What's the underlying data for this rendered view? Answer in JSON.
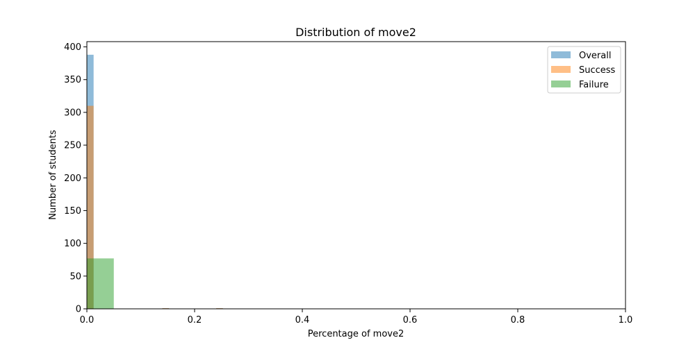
{
  "chart_data": {
    "type": "bar",
    "title": "Distribution of move2",
    "xlabel": "Percentage of move2",
    "ylabel": "Number of students",
    "xlim": [
      0,
      1
    ],
    "ylim": [
      0,
      408
    ],
    "xticks": [
      0.0,
      0.2,
      0.4,
      0.6,
      0.8,
      1.0
    ],
    "xtick_labels": [
      "0.0",
      "0.2",
      "0.4",
      "0.6",
      "0.8",
      "1.0"
    ],
    "yticks": [
      0,
      50,
      100,
      150,
      200,
      250,
      300,
      350,
      400
    ],
    "ytick_labels": [
      "0",
      "50",
      "100",
      "150",
      "200",
      "250",
      "300",
      "350",
      "400"
    ],
    "grid": false,
    "legend_position": "top-right",
    "series": [
      {
        "name": "Overall",
        "color": "#1f77b4",
        "opacity": 0.5,
        "bins": [
          {
            "x0": 0.0,
            "x1": 0.0125,
            "count": 388
          },
          {
            "x0": 0.14,
            "x1": 0.1525,
            "count": 1
          },
          {
            "x0": 0.24,
            "x1": 0.2525,
            "count": 1
          }
        ]
      },
      {
        "name": "Success",
        "color": "#ff7f0e",
        "opacity": 0.5,
        "bins": [
          {
            "x0": 0.0,
            "x1": 0.0125,
            "count": 310
          },
          {
            "x0": 0.14,
            "x1": 0.1525,
            "count": 1
          },
          {
            "x0": 0.24,
            "x1": 0.2525,
            "count": 1
          }
        ]
      },
      {
        "name": "Failure",
        "color": "#2ca02c",
        "opacity": 0.5,
        "bins": [
          {
            "x0": 0.0,
            "x1": 0.05,
            "count": 77
          }
        ]
      }
    ]
  }
}
